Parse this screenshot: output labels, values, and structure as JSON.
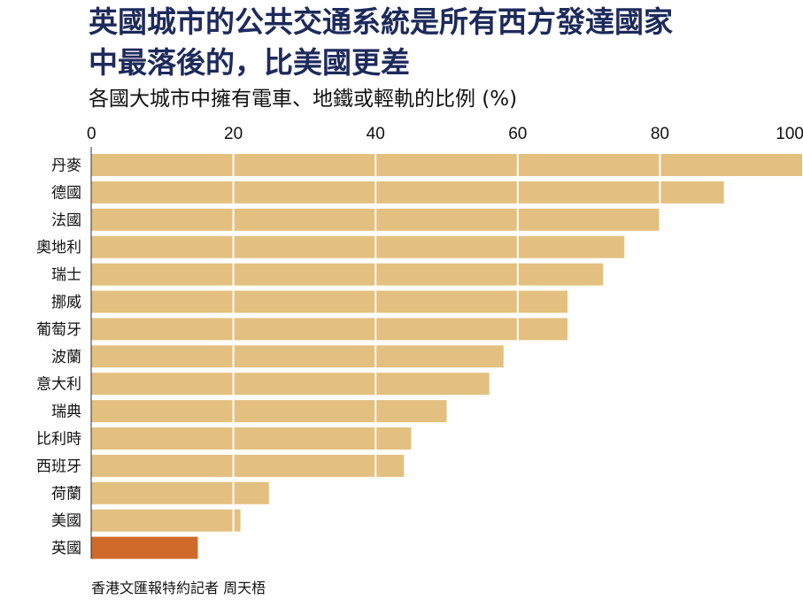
{
  "title_line1": "英國城市的公共交通系統是所有西方發達國家",
  "title_line2": "中最落後的，比美國更差",
  "subtitle": "各國大城市中擁有電車、地鐵或輕軌的比例 (%)",
  "credit": "香港文匯報特約記者 周天梧",
  "colors": {
    "bar": "#e3c07f",
    "highlight": "#cf6a2a",
    "title": "#1d2a5c"
  },
  "chart_data": {
    "type": "bar",
    "orientation": "horizontal",
    "title": "英國城市的公共交通系統是所有西方發達國家中最落後的，比美國更差",
    "xlabel": "各國大城市中擁有電車、地鐵或輕軌的比例 (%)",
    "ylabel": "",
    "xlim": [
      0,
      100
    ],
    "ticks": [
      0,
      20,
      40,
      60,
      80,
      100
    ],
    "tick_labels": [
      "0",
      "20",
      "40",
      "60",
      "80",
      "100"
    ],
    "tick_position": "top",
    "grid": true,
    "categories": [
      "丹麥",
      "德國",
      "法國",
      "奧地利",
      "瑞士",
      "挪威",
      "葡萄牙",
      "波蘭",
      "意大利",
      "瑞典",
      "比利時",
      "西班牙",
      "荷蘭",
      "美國",
      "英國"
    ],
    "values": [
      100,
      89,
      80,
      75,
      72,
      67,
      67,
      58,
      56,
      50,
      45,
      44,
      25,
      21,
      15
    ],
    "highlight": "英國"
  }
}
